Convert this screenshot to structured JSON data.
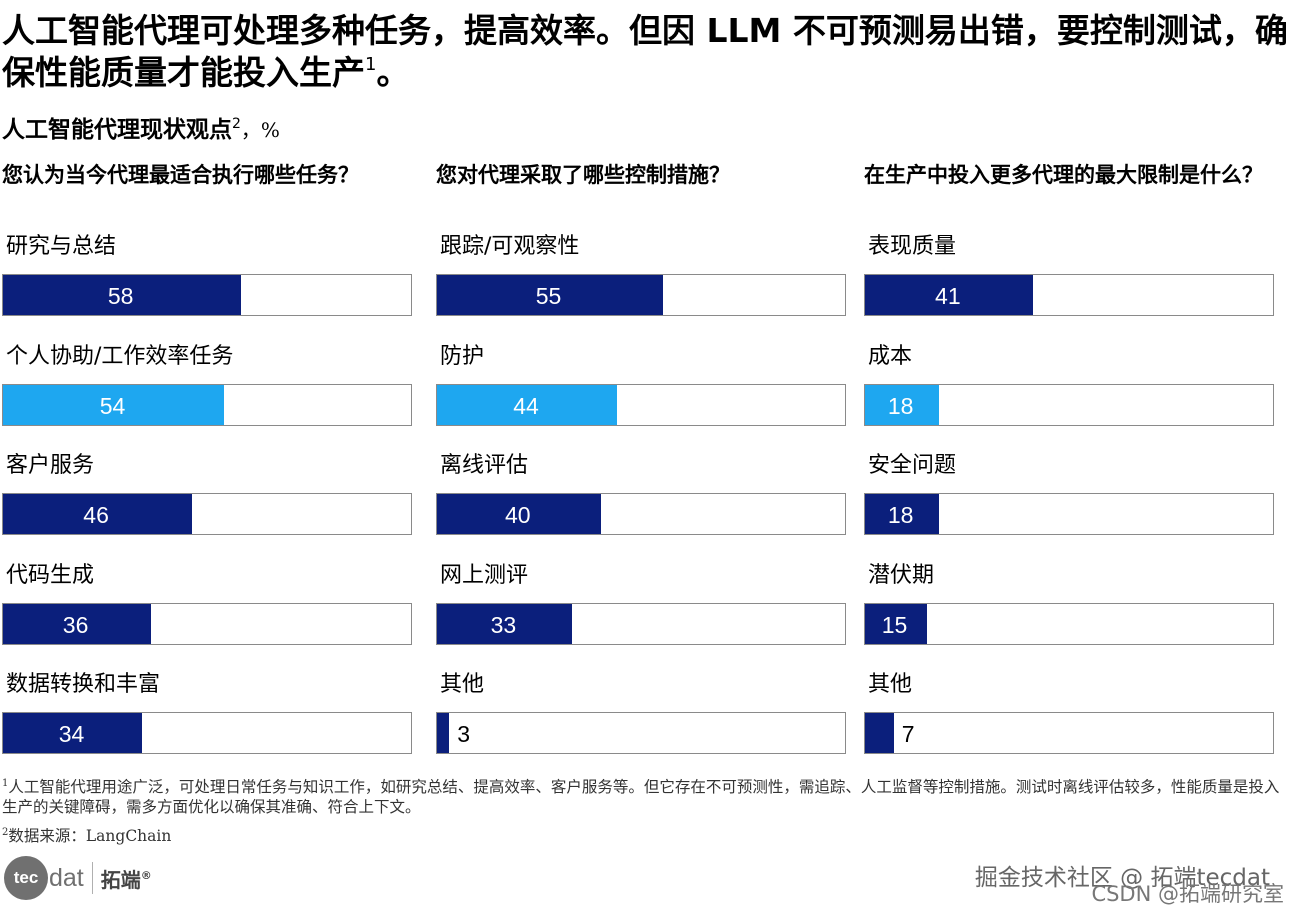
{
  "headline": {
    "text": "人工智能代理可处理多种任务，提高效率。但因 LLM 不可预测易出错，要控制测试，确保性能质量才能投入生产",
    "sup": "1",
    "end": "。"
  },
  "subtitle": {
    "text": "人工智能代理现状观点",
    "sup": "2",
    "unit": "，%"
  },
  "colors": {
    "dark_navy": "#0b1f7c",
    "light_blue": "#1ea7f0",
    "track_border": "#8a8a8a"
  },
  "chart_data": [
    {
      "type": "bar",
      "orientation": "horizontal",
      "title": "您认为当今代理最适合执行哪些任务？",
      "xlim": [
        0,
        100
      ],
      "categories": [
        "研究与总结",
        "个人协助/工作效率任务",
        "客户服务",
        "代码生成",
        "数据转换和丰富"
      ],
      "values": [
        58,
        54,
        46,
        36,
        34
      ],
      "highlight_index": 1
    },
    {
      "type": "bar",
      "orientation": "horizontal",
      "title": "您对代理采取了哪些控制措施？",
      "xlim": [
        0,
        100
      ],
      "categories": [
        "跟踪/可观察性",
        "防护",
        "离线评估",
        "网上测评",
        "其他"
      ],
      "values": [
        55,
        44,
        40,
        33,
        3
      ],
      "highlight_index": 1
    },
    {
      "type": "bar",
      "orientation": "horizontal",
      "title": "在生产中投入更多代理的最大限制是什么？",
      "xlim": [
        0,
        100
      ],
      "categories": [
        "表现质量",
        "成本",
        "安全问题",
        "潜伏期",
        "其他"
      ],
      "values": [
        41,
        18,
        18,
        15,
        7
      ],
      "highlight_index": 1
    }
  ],
  "footnotes": [
    {
      "sup": "1",
      "text": "人工智能代理用途广泛，可处理日常任务与知识工作，如研究总结、提高效率、客户服务等。但它存在不可预测性，需追踪、人工监督等控制措施。测试时离线评估较多，性能质量是投入生产的关键障碍，需多方面优化以确保其准确、符合上下文。"
    },
    {
      "sup": "2",
      "text": "数据来源：LangChain"
    }
  ],
  "logo": {
    "circle_text": "tec",
    "rest_text": "dat",
    "cn_text": "拓端",
    "reg_mark": "®"
  },
  "watermark": {
    "line1": "掘金技术社区 @ 拓端tecdat",
    "line2": "CSDN @拓端研究室"
  }
}
